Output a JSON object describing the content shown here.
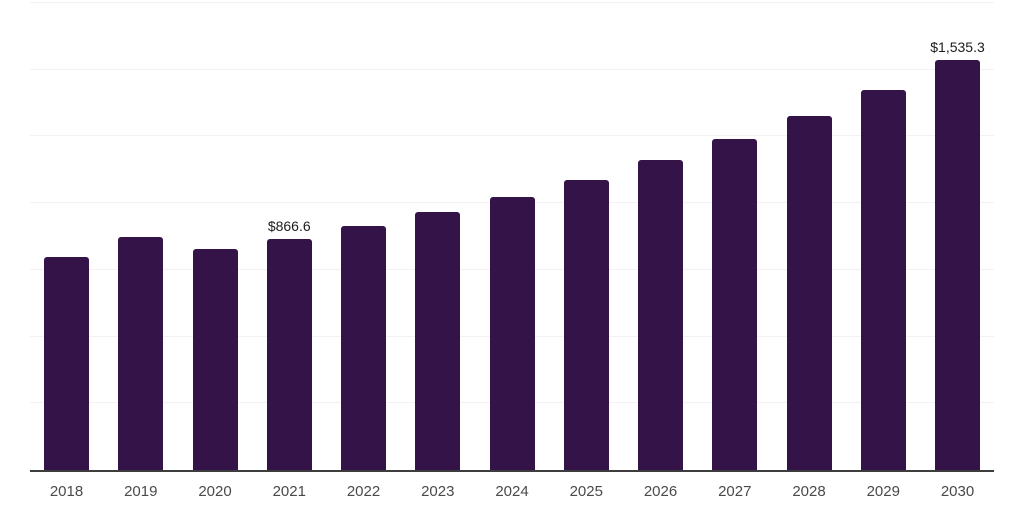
{
  "chart_data": {
    "type": "bar",
    "title": "",
    "xlabel": "",
    "ylabel": "",
    "categories": [
      "2018",
      "2019",
      "2020",
      "2021",
      "2022",
      "2023",
      "2024",
      "2025",
      "2026",
      "2027",
      "2028",
      "2029",
      "2030"
    ],
    "values": [
      797,
      874,
      828,
      866.6,
      915,
      967,
      1023,
      1086,
      1160,
      1241,
      1328,
      1425,
      1535.3
    ],
    "data_labels": {
      "2021": "$866.6",
      "2030": "$1,535.3"
    },
    "ylim": [
      0,
      1750
    ],
    "gridline_step": 250,
    "grid": "horizontal",
    "legend": "none",
    "y_tick_labels_visible": false
  },
  "colors": {
    "bar": "#341349",
    "gridline": "#f2f2f2",
    "axis_line": "#3d3d3d",
    "x_tick_label": "#4a4a4a",
    "value_label": "#1c1c1c",
    "background": "#ffffff"
  }
}
